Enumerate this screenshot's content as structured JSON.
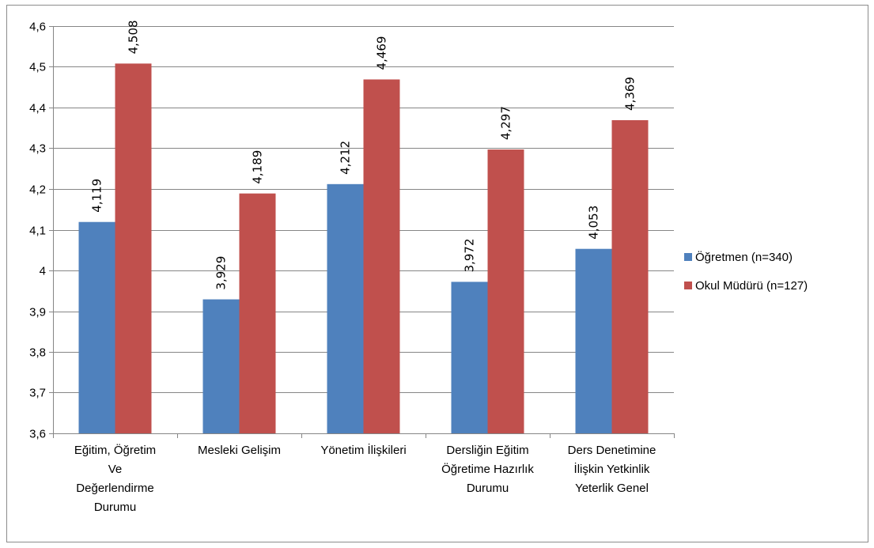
{
  "chart_data": {
    "type": "bar",
    "categories": [
      [
        "Eğitim, Öğretim",
        "Ve",
        "Değerlendirme",
        "Durumu"
      ],
      [
        "Mesleki Gelişim"
      ],
      [
        "Yönetim İlişkileri"
      ],
      [
        "Dersliğin Eğitim",
        "Öğretime Hazırlık",
        "Durumu"
      ],
      [
        "Ders Denetimine",
        "İlişkin Yetkinlik",
        "Yeterlik Genel"
      ]
    ],
    "series": [
      {
        "name": "Öğretmen (n=340)",
        "color": "#4f81bd",
        "values": [
          4.119,
          3.929,
          4.212,
          3.972,
          4.053
        ],
        "labels": [
          "4,119",
          "3,929",
          "4,212",
          "3,972",
          "4,053"
        ]
      },
      {
        "name": "Okul Müdürü (n=127)",
        "color": "#c0504d",
        "values": [
          4.508,
          4.189,
          4.469,
          4.297,
          4.369
        ],
        "labels": [
          "4,508",
          "4,189",
          "4,469",
          "4,297",
          "4,369"
        ]
      }
    ],
    "ylim": [
      3.6,
      4.6
    ],
    "yticks": [
      3.6,
      3.7,
      3.8,
      3.9,
      4.0,
      4.1,
      4.2,
      4.3,
      4.4,
      4.5,
      4.6
    ],
    "ytick_labels": [
      "3,6",
      "3,7",
      "3,8",
      "3,9",
      "4",
      "4,1",
      "4,2",
      "4,3",
      "4,4",
      "4,5",
      "4,6"
    ],
    "grid": true,
    "legend_position": "right",
    "title": "",
    "xlabel": "",
    "ylabel": ""
  }
}
